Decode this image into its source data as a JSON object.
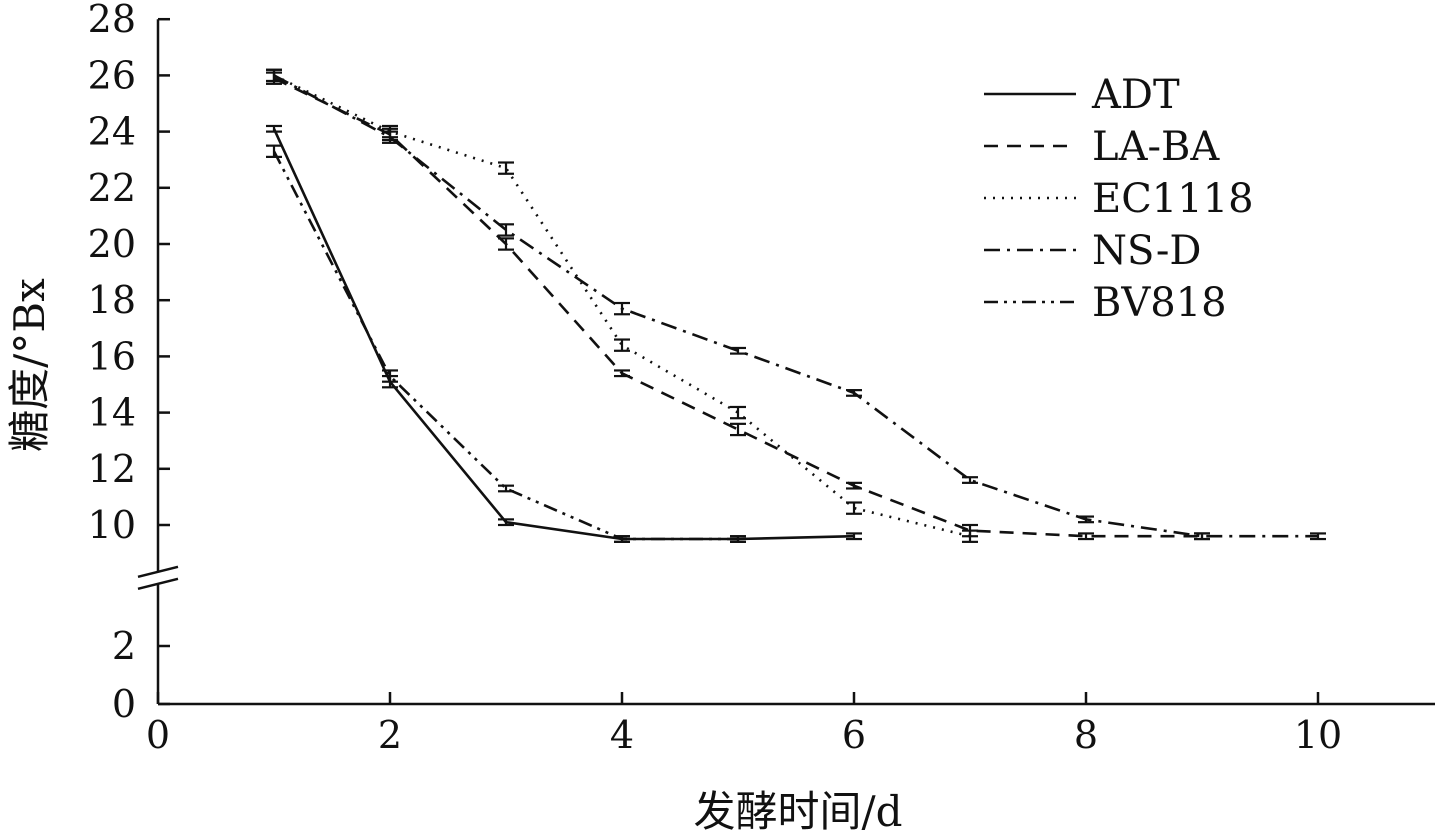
{
  "chart_data": {
    "type": "line",
    "xlabel": "发酵时间/d",
    "ylabel": "糖度/°Bx",
    "xlim": [
      0,
      11
    ],
    "ylim": [
      0,
      28
    ],
    "y_axis_break": [
      3.5,
      9
    ],
    "xticks": [
      "0",
      "2",
      "4",
      "6",
      "8",
      "10"
    ],
    "yticks": [
      "0",
      "2",
      "10",
      "12",
      "14",
      "16",
      "18",
      "20",
      "22",
      "24",
      "26",
      "28"
    ],
    "grid": false,
    "legend_position": "top-right",
    "series": [
      {
        "name": "ADT",
        "dash": "solid",
        "points": [
          {
            "x": 1,
            "y": 24.1,
            "err": 0.1
          },
          {
            "x": 2,
            "y": 15.1,
            "err": 0.2
          },
          {
            "x": 3,
            "y": 10.1,
            "err": 0.1
          },
          {
            "x": 4,
            "y": 9.5,
            "err": 0.1
          },
          {
            "x": 5,
            "y": 9.5,
            "err": 0.1
          },
          {
            "x": 6,
            "y": 9.6,
            "err": 0.1
          }
        ]
      },
      {
        "name": "LA-BA",
        "dash": "dashed",
        "points": [
          {
            "x": 1,
            "y": 25.9,
            "err": 0.2
          },
          {
            "x": 2,
            "y": 23.9,
            "err": 0.2
          },
          {
            "x": 3,
            "y": 20.0,
            "err": 0.2
          },
          {
            "x": 4,
            "y": 15.4,
            "err": 0.1
          },
          {
            "x": 5,
            "y": 13.4,
            "err": 0.2
          },
          {
            "x": 6,
            "y": 11.4,
            "err": 0.1
          },
          {
            "x": 7,
            "y": 9.8,
            "err": 0.2
          },
          {
            "x": 8,
            "y": 9.6,
            "err": 0.1
          },
          {
            "x": 9,
            "y": 9.6,
            "err": 0.1
          }
        ]
      },
      {
        "name": "EC1118",
        "dash": "dotted",
        "points": [
          {
            "x": 1,
            "y": 26.0,
            "err": 0.2
          },
          {
            "x": 2,
            "y": 24.0,
            "err": 0.2
          },
          {
            "x": 3,
            "y": 22.7,
            "err": 0.2
          },
          {
            "x": 4,
            "y": 16.4,
            "err": 0.2
          },
          {
            "x": 5,
            "y": 14.0,
            "err": 0.2
          },
          {
            "x": 6,
            "y": 10.6,
            "err": 0.2
          },
          {
            "x": 7,
            "y": 9.6,
            "err": 0.2
          }
        ]
      },
      {
        "name": "NS-D",
        "dash": "dashdot",
        "points": [
          {
            "x": 1,
            "y": 26.0,
            "err": 0.2
          },
          {
            "x": 2,
            "y": 23.8,
            "err": 0.2
          },
          {
            "x": 3,
            "y": 20.5,
            "err": 0.2
          },
          {
            "x": 4,
            "y": 17.7,
            "err": 0.2
          },
          {
            "x": 5,
            "y": 16.2,
            "err": 0.1
          },
          {
            "x": 6,
            "y": 14.7,
            "err": 0.1
          },
          {
            "x": 7,
            "y": 11.6,
            "err": 0.1
          },
          {
            "x": 8,
            "y": 10.2,
            "err": 0.1
          },
          {
            "x": 9,
            "y": 9.6,
            "err": 0.1
          },
          {
            "x": 10,
            "y": 9.6,
            "err": 0.1
          }
        ]
      },
      {
        "name": "BV818",
        "dash": "dashdotdot",
        "points": [
          {
            "x": 1,
            "y": 23.3,
            "err": 0.2
          },
          {
            "x": 2,
            "y": 15.3,
            "err": 0.2
          },
          {
            "x": 3,
            "y": 11.3,
            "err": 0.1
          },
          {
            "x": 4,
            "y": 9.5,
            "err": 0.1
          },
          {
            "x": 5,
            "y": 9.5,
            "err": 0.1
          }
        ]
      }
    ]
  }
}
